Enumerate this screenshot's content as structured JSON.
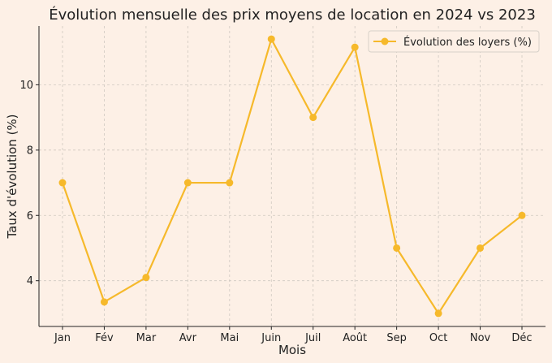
{
  "chart_data": {
    "type": "line",
    "title": "Évolution mensuelle des prix moyens de location en 2024 vs 2023",
    "xlabel": "Mois",
    "ylabel": "Taux d'évolution (%)",
    "categories": [
      "Jan",
      "Fév",
      "Mar",
      "Avr",
      "Mai",
      "Juin",
      "Juil",
      "Août",
      "Sep",
      "Oct",
      "Nov",
      "Déc"
    ],
    "series": [
      {
        "name": "Évolution des loyers (%)",
        "values": [
          7.0,
          3.35,
          4.1,
          7.0,
          7.0,
          11.4,
          9.0,
          11.15,
          5.0,
          3.0,
          5.0,
          6.0
        ],
        "color": "#f6b92b"
      }
    ],
    "ylim": [
      2.6,
      11.8
    ],
    "yticks": [
      4,
      6,
      8,
      10
    ],
    "grid": true,
    "legend": "top-right"
  }
}
